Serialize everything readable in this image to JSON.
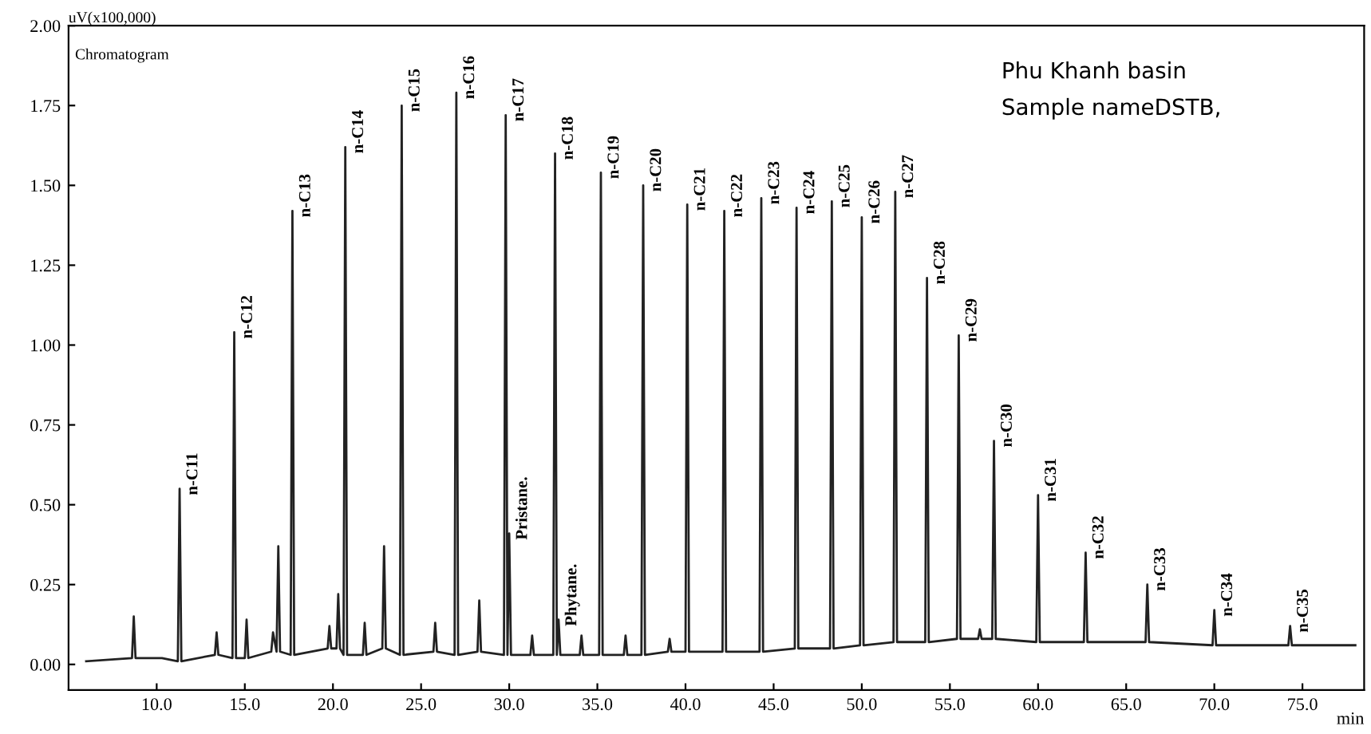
{
  "chart_data": {
    "type": "line",
    "ylabel": "uV(x100,000)",
    "xlabel": "min",
    "annotations": [
      "Chromatogram",
      "Phu Khanh basin",
      "Sample nameDSTB,",
      {
        "text": "n-C11",
        "x": 11.3,
        "y": 0.55
      },
      {
        "text": "n-C12",
        "x": 14.4,
        "y": 1.04
      },
      {
        "text": "n-C13",
        "x": 17.7,
        "y": 1.42
      },
      {
        "text": "n-C14",
        "x": 20.7,
        "y": 1.62
      },
      {
        "text": "n-C15",
        "x": 23.9,
        "y": 1.75
      },
      {
        "text": "n-C16",
        "x": 27.0,
        "y": 1.79
      },
      {
        "text": "n-C17",
        "x": 29.8,
        "y": 1.72
      },
      {
        "text": "Pristane.",
        "x": 30.0,
        "y": 0.41
      },
      {
        "text": "n-C18",
        "x": 32.6,
        "y": 1.6
      },
      {
        "text": "Phytane.",
        "x": 32.8,
        "y": 0.14
      },
      {
        "text": "n-C19",
        "x": 35.2,
        "y": 1.54
      },
      {
        "text": "n-C20",
        "x": 37.6,
        "y": 1.5
      },
      {
        "text": "n-C21",
        "x": 40.1,
        "y": 1.44
      },
      {
        "text": "n-C22",
        "x": 42.2,
        "y": 1.42
      },
      {
        "text": "n-C23",
        "x": 44.3,
        "y": 1.46
      },
      {
        "text": "n-C24",
        "x": 46.3,
        "y": 1.43
      },
      {
        "text": "n-C25",
        "x": 48.3,
        "y": 1.45
      },
      {
        "text": "n-C26",
        "x": 50.0,
        "y": 1.4
      },
      {
        "text": "n-C27",
        "x": 51.9,
        "y": 1.48
      },
      {
        "text": "n-C28",
        "x": 53.7,
        "y": 1.21
      },
      {
        "text": "n-C29",
        "x": 55.5,
        "y": 1.03
      },
      {
        "text": "n-C30",
        "x": 57.5,
        "y": 0.7
      },
      {
        "text": "n-C31",
        "x": 60.0,
        "y": 0.53
      },
      {
        "text": "n-C32",
        "x": 62.7,
        "y": 0.35
      },
      {
        "text": "n-C33",
        "x": 66.2,
        "y": 0.25
      },
      {
        "text": "n-C34",
        "x": 70.0,
        "y": 0.17
      },
      {
        "text": "n-C35",
        "x": 74.3,
        "y": 0.12
      }
    ],
    "xlim": [
      5,
      78.5
    ],
    "ylim": [
      -0.08,
      2.0
    ],
    "xticks": [
      {
        "value": 10,
        "label": "10.0"
      },
      {
        "value": 15,
        "label": "15.0"
      },
      {
        "value": 20,
        "label": "20.0"
      },
      {
        "value": 25,
        "label": "25.0"
      },
      {
        "value": 30,
        "label": "30.0"
      },
      {
        "value": 35,
        "label": "35.0"
      },
      {
        "value": 40,
        "label": "40.0"
      },
      {
        "value": 45,
        "label": "45.0"
      },
      {
        "value": 50,
        "label": "50.0"
      },
      {
        "value": 55,
        "label": "55.0"
      },
      {
        "value": 60,
        "label": "60.0"
      },
      {
        "value": 65,
        "label": "65.0"
      },
      {
        "value": 70,
        "label": "70.0"
      },
      {
        "value": 75,
        "label": "75.0"
      }
    ],
    "yticks": [
      {
        "value": 0,
        "label": "0.00"
      },
      {
        "value": 0.25,
        "label": "0.25"
      },
      {
        "value": 0.5,
        "label": "0.50"
      },
      {
        "value": 0.75,
        "label": "0.75"
      },
      {
        "value": 1.0,
        "label": "1.00"
      },
      {
        "value": 1.25,
        "label": "1.25"
      },
      {
        "value": 1.5,
        "label": "1.50"
      },
      {
        "value": 1.75,
        "label": "1.75"
      },
      {
        "value": 2.0,
        "label": "2.00"
      }
    ],
    "grid": false,
    "legend": false,
    "series": [
      {
        "color": "#222222",
        "x": [
          6.0,
          8.6,
          8.7,
          8.8,
          10.3,
          11.2,
          11.3,
          11.4,
          13.3,
          13.4,
          13.5,
          14.3,
          14.4,
          14.5,
          15.0,
          15.1,
          15.2,
          16.5,
          16.6,
          16.8,
          16.9,
          17.0,
          17.6,
          17.7,
          17.8,
          19.7,
          19.8,
          19.9,
          20.2,
          20.3,
          20.4,
          20.6,
          20.7,
          20.8,
          21.7,
          21.8,
          21.9,
          22.8,
          22.9,
          23.0,
          23.8,
          23.9,
          24.0,
          25.7,
          25.8,
          25.9,
          26.9,
          27.0,
          27.1,
          28.2,
          28.3,
          28.4,
          29.7,
          29.8,
          29.9,
          30.0,
          30.1,
          31.2,
          31.3,
          31.4,
          32.5,
          32.6,
          32.7,
          32.8,
          32.9,
          34.0,
          34.1,
          34.2,
          35.1,
          35.2,
          35.3,
          36.5,
          36.6,
          36.7,
          37.5,
          37.6,
          37.7,
          39.0,
          39.1,
          39.2,
          40.0,
          40.1,
          40.2,
          42.1,
          42.2,
          42.3,
          44.2,
          44.3,
          44.4,
          46.2,
          46.3,
          46.4,
          48.2,
          48.3,
          48.4,
          49.9,
          50.0,
          50.1,
          51.8,
          51.9,
          52.0,
          53.6,
          53.7,
          53.8,
          55.4,
          55.5,
          55.6,
          56.6,
          56.7,
          56.8,
          57.4,
          57.5,
          57.6,
          59.9,
          60.0,
          60.1,
          62.6,
          62.7,
          62.8,
          66.1,
          66.2,
          66.3,
          69.9,
          70.0,
          70.1,
          74.2,
          74.3,
          74.4,
          78.0
        ],
        "values": [
          0.01,
          0.02,
          0.15,
          0.02,
          0.02,
          0.01,
          0.55,
          0.01,
          0.03,
          0.1,
          0.03,
          0.02,
          1.04,
          0.02,
          0.02,
          0.14,
          0.02,
          0.04,
          0.1,
          0.04,
          0.37,
          0.04,
          0.03,
          1.42,
          0.03,
          0.05,
          0.12,
          0.05,
          0.05,
          0.22,
          0.05,
          0.03,
          1.62,
          0.03,
          0.03,
          0.13,
          0.03,
          0.05,
          0.37,
          0.05,
          0.03,
          1.75,
          0.03,
          0.04,
          0.13,
          0.04,
          0.03,
          1.79,
          0.03,
          0.04,
          0.2,
          0.04,
          0.03,
          1.72,
          0.03,
          0.41,
          0.03,
          0.03,
          0.09,
          0.03,
          0.03,
          1.6,
          0.03,
          0.14,
          0.03,
          0.03,
          0.09,
          0.03,
          0.03,
          1.54,
          0.03,
          0.03,
          0.09,
          0.03,
          0.03,
          1.5,
          0.03,
          0.04,
          0.08,
          0.04,
          0.04,
          1.44,
          0.04,
          0.04,
          1.42,
          0.04,
          0.04,
          1.46,
          0.04,
          0.05,
          1.43,
          0.05,
          0.05,
          1.45,
          0.05,
          0.06,
          1.4,
          0.06,
          0.07,
          1.48,
          0.07,
          0.07,
          1.21,
          0.07,
          0.08,
          1.03,
          0.08,
          0.08,
          0.11,
          0.08,
          0.08,
          0.7,
          0.08,
          0.07,
          0.53,
          0.07,
          0.07,
          0.35,
          0.07,
          0.07,
          0.25,
          0.07,
          0.06,
          0.17,
          0.06,
          0.06,
          0.12,
          0.06,
          0.06
        ]
      }
    ]
  }
}
